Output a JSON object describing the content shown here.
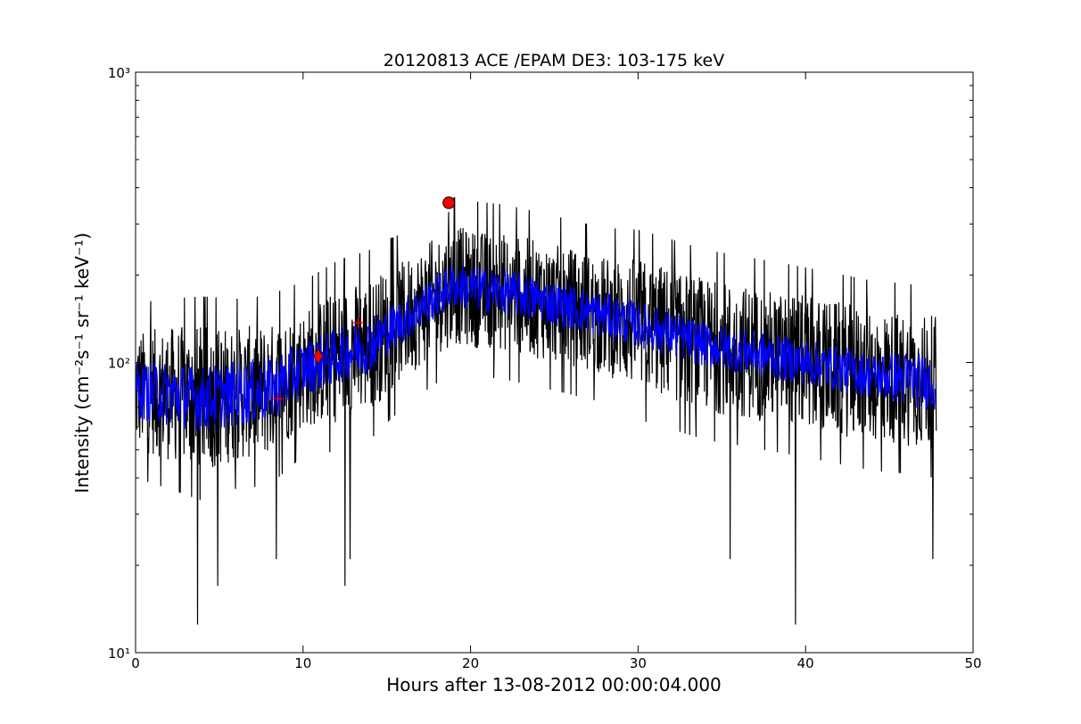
{
  "chart_data": {
    "type": "line",
    "title": "20120813 ACE /EPAM DE3: 103-175 keV",
    "xlabel": "Hours after 13-08-2012 00:00:04.000",
    "ylabel": "Intensity (cm⁻²s⁻¹ sr⁻¹ keV⁻¹)",
    "xlim": [
      0,
      50
    ],
    "ylim": [
      10,
      1000
    ],
    "yscale": "log",
    "grid": false,
    "x_ticks": [
      0,
      10,
      20,
      30,
      40,
      50
    ],
    "x_tick_labels": [
      "0",
      "10",
      "20",
      "30",
      "40",
      "50"
    ],
    "y_ticks": [
      10,
      100,
      1000
    ],
    "y_tick_labels": [
      "10¹",
      "10²",
      "10³"
    ],
    "series": [
      {
        "color": "#000000",
        "style": "raw noisy trace",
        "x": [
          0,
          2,
          4,
          6,
          8,
          10,
          12,
          14,
          16,
          18,
          19,
          20,
          22,
          24,
          26,
          28,
          30,
          32,
          34,
          36,
          38,
          40,
          42,
          44,
          46,
          47.8
        ],
        "y": [
          80,
          78,
          75,
          78,
          80,
          95,
          105,
          115,
          140,
          170,
          185,
          180,
          175,
          165,
          155,
          145,
          135,
          125,
          115,
          110,
          105,
          100,
          95,
          90,
          88,
          85
        ],
        "spread_factor": [
          1.6,
          1.7,
          1.8,
          1.7,
          1.7,
          1.6,
          1.7,
          1.7,
          1.6,
          1.6,
          1.6,
          1.6,
          1.6,
          1.6,
          1.6,
          1.6,
          1.7,
          1.7,
          1.7,
          1.7,
          1.7,
          1.7,
          1.7,
          1.7,
          1.7,
          1.7
        ],
        "peak": {
          "x": 18.7,
          "y": 330
        },
        "dips": [
          {
            "x": 3.7,
            "y": 12.5
          },
          {
            "x": 4.9,
            "y": 17
          },
          {
            "x": 8.4,
            "y": 21
          },
          {
            "x": 12.5,
            "y": 17
          },
          {
            "x": 12.8,
            "y": 21
          },
          {
            "x": 35.5,
            "y": 21
          },
          {
            "x": 39.4,
            "y": 12.5
          },
          {
            "x": 47.6,
            "y": 21
          }
        ]
      },
      {
        "color": "#0000ff",
        "style": "smoothed trace",
        "x": [
          0,
          2,
          4,
          6,
          8,
          10,
          12,
          14,
          16,
          18,
          19,
          20,
          22,
          24,
          26,
          28,
          30,
          32,
          34,
          36,
          38,
          40,
          42,
          44,
          46,
          47.8
        ],
        "y": [
          80,
          78,
          75,
          78,
          80,
          95,
          105,
          115,
          140,
          170,
          185,
          180,
          175,
          165,
          155,
          145,
          135,
          125,
          115,
          110,
          105,
          100,
          95,
          90,
          88,
          85
        ],
        "spread_factor": [
          1.25,
          1.3,
          1.3,
          1.3,
          1.3,
          1.25,
          1.25,
          1.25,
          1.2,
          1.2,
          1.2,
          1.2,
          1.2,
          1.2,
          1.2,
          1.2,
          1.2,
          1.2,
          1.2,
          1.2,
          1.2,
          1.2,
          1.2,
          1.2,
          1.25,
          1.25
        ]
      }
    ],
    "markers": [
      {
        "shape": "circle",
        "x": 18.7,
        "y": 355,
        "color": "#ff0000"
      },
      {
        "shape": "diamond",
        "x": 10.9,
        "y": 105,
        "color": "#ff0000"
      },
      {
        "shape": "plus",
        "x": 8.5,
        "y": 75,
        "color": "#ff0000"
      },
      {
        "shape": "plus",
        "x": 13.3,
        "y": 137,
        "color": "#ff0000"
      }
    ]
  }
}
